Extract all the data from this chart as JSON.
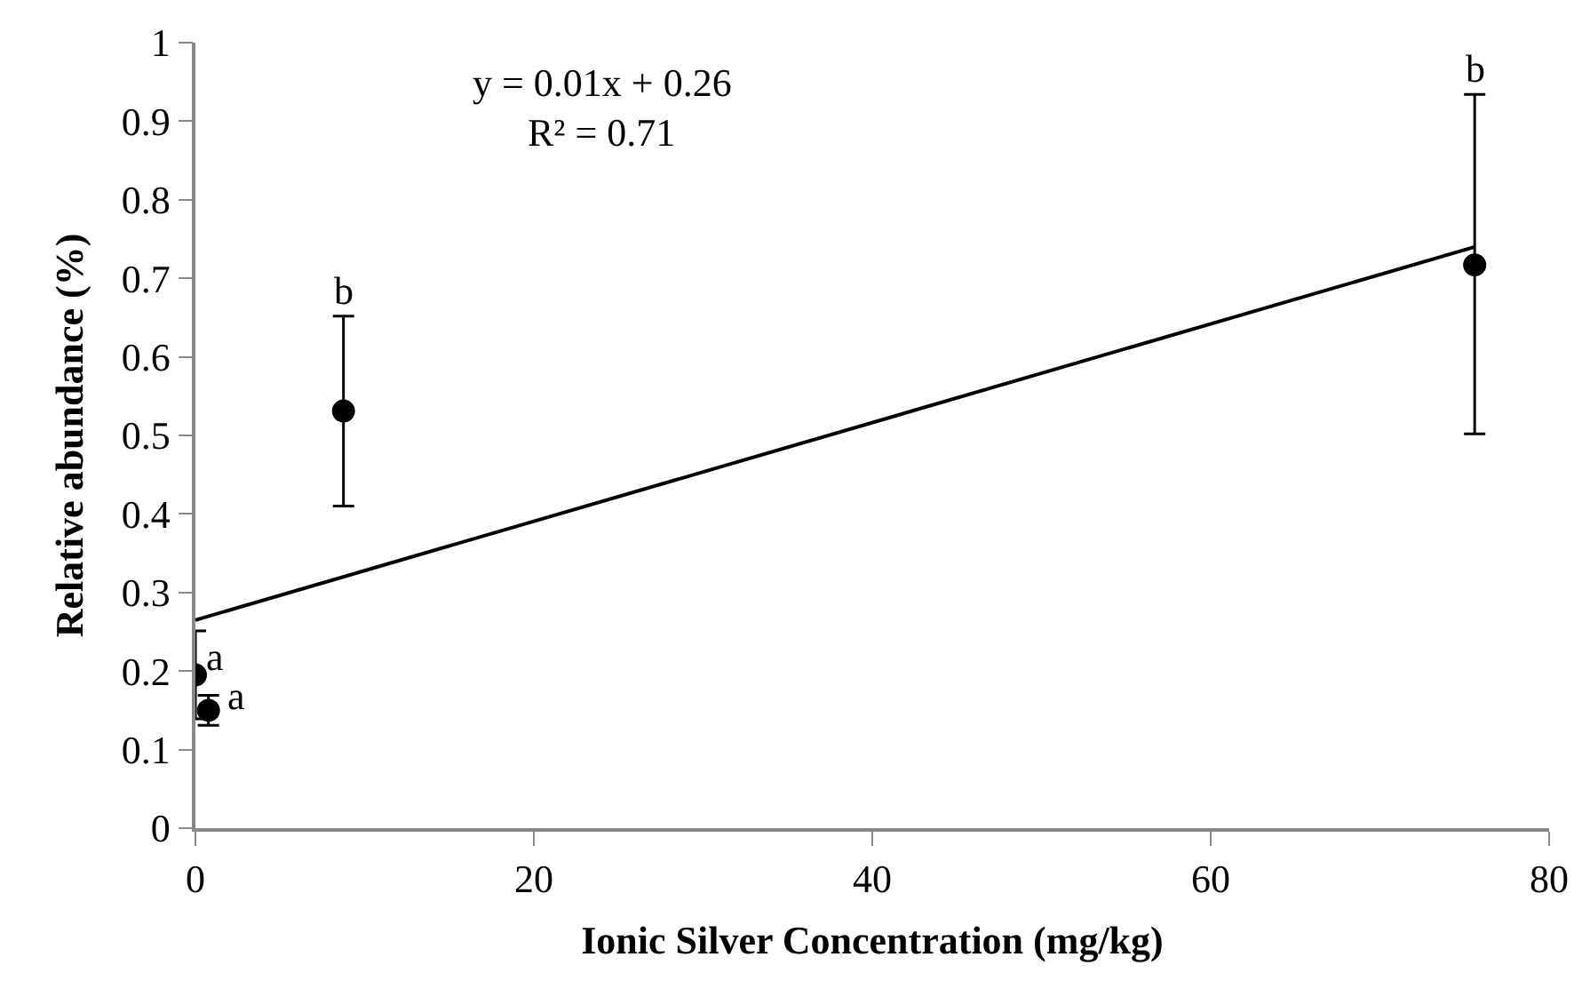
{
  "chart_data": {
    "type": "scatter",
    "xlabel": "Ionic Silver Concentration (mg/kg)",
    "ylabel": "Relative abundance (%)",
    "xlim": [
      0,
      80
    ],
    "xticks": [
      0,
      20,
      40,
      60,
      80
    ],
    "ylim": [
      0,
      1
    ],
    "yticks": [
      0,
      0.1,
      0.2,
      0.3,
      0.4,
      0.5,
      0.6,
      0.7,
      0.8,
      0.9,
      1
    ],
    "series": [
      {
        "color": "#000000",
        "marker": "circle",
        "x": [
          0,
          0.77,
          8.75,
          75.6
        ],
        "values": [
          0.195,
          0.15,
          0.531,
          0.717
        ],
        "errors": [
          0.056,
          0.019,
          [
            0.41,
            0.652
          ],
          [
            0.502,
            0.934
          ]
        ]
      },
      {
        "type": "line",
        "color": "#000000",
        "x": [
          0,
          75.6
        ],
        "values": [
          0.265,
          0.74
        ],
        "line_style": "solid"
      }
    ],
    "annotations": [
      "y = 0.01x + 0.26",
      "R² = 0.71",
      {
        "text": "a",
        "x": 0,
        "y": 0.251
      },
      {
        "text": "a",
        "x": 0.77,
        "y": 0.169
      },
      {
        "text": "b",
        "x": 8.75,
        "y": 0.652
      },
      {
        "text": "b",
        "x": 75.6,
        "y": 0.934
      }
    ]
  }
}
